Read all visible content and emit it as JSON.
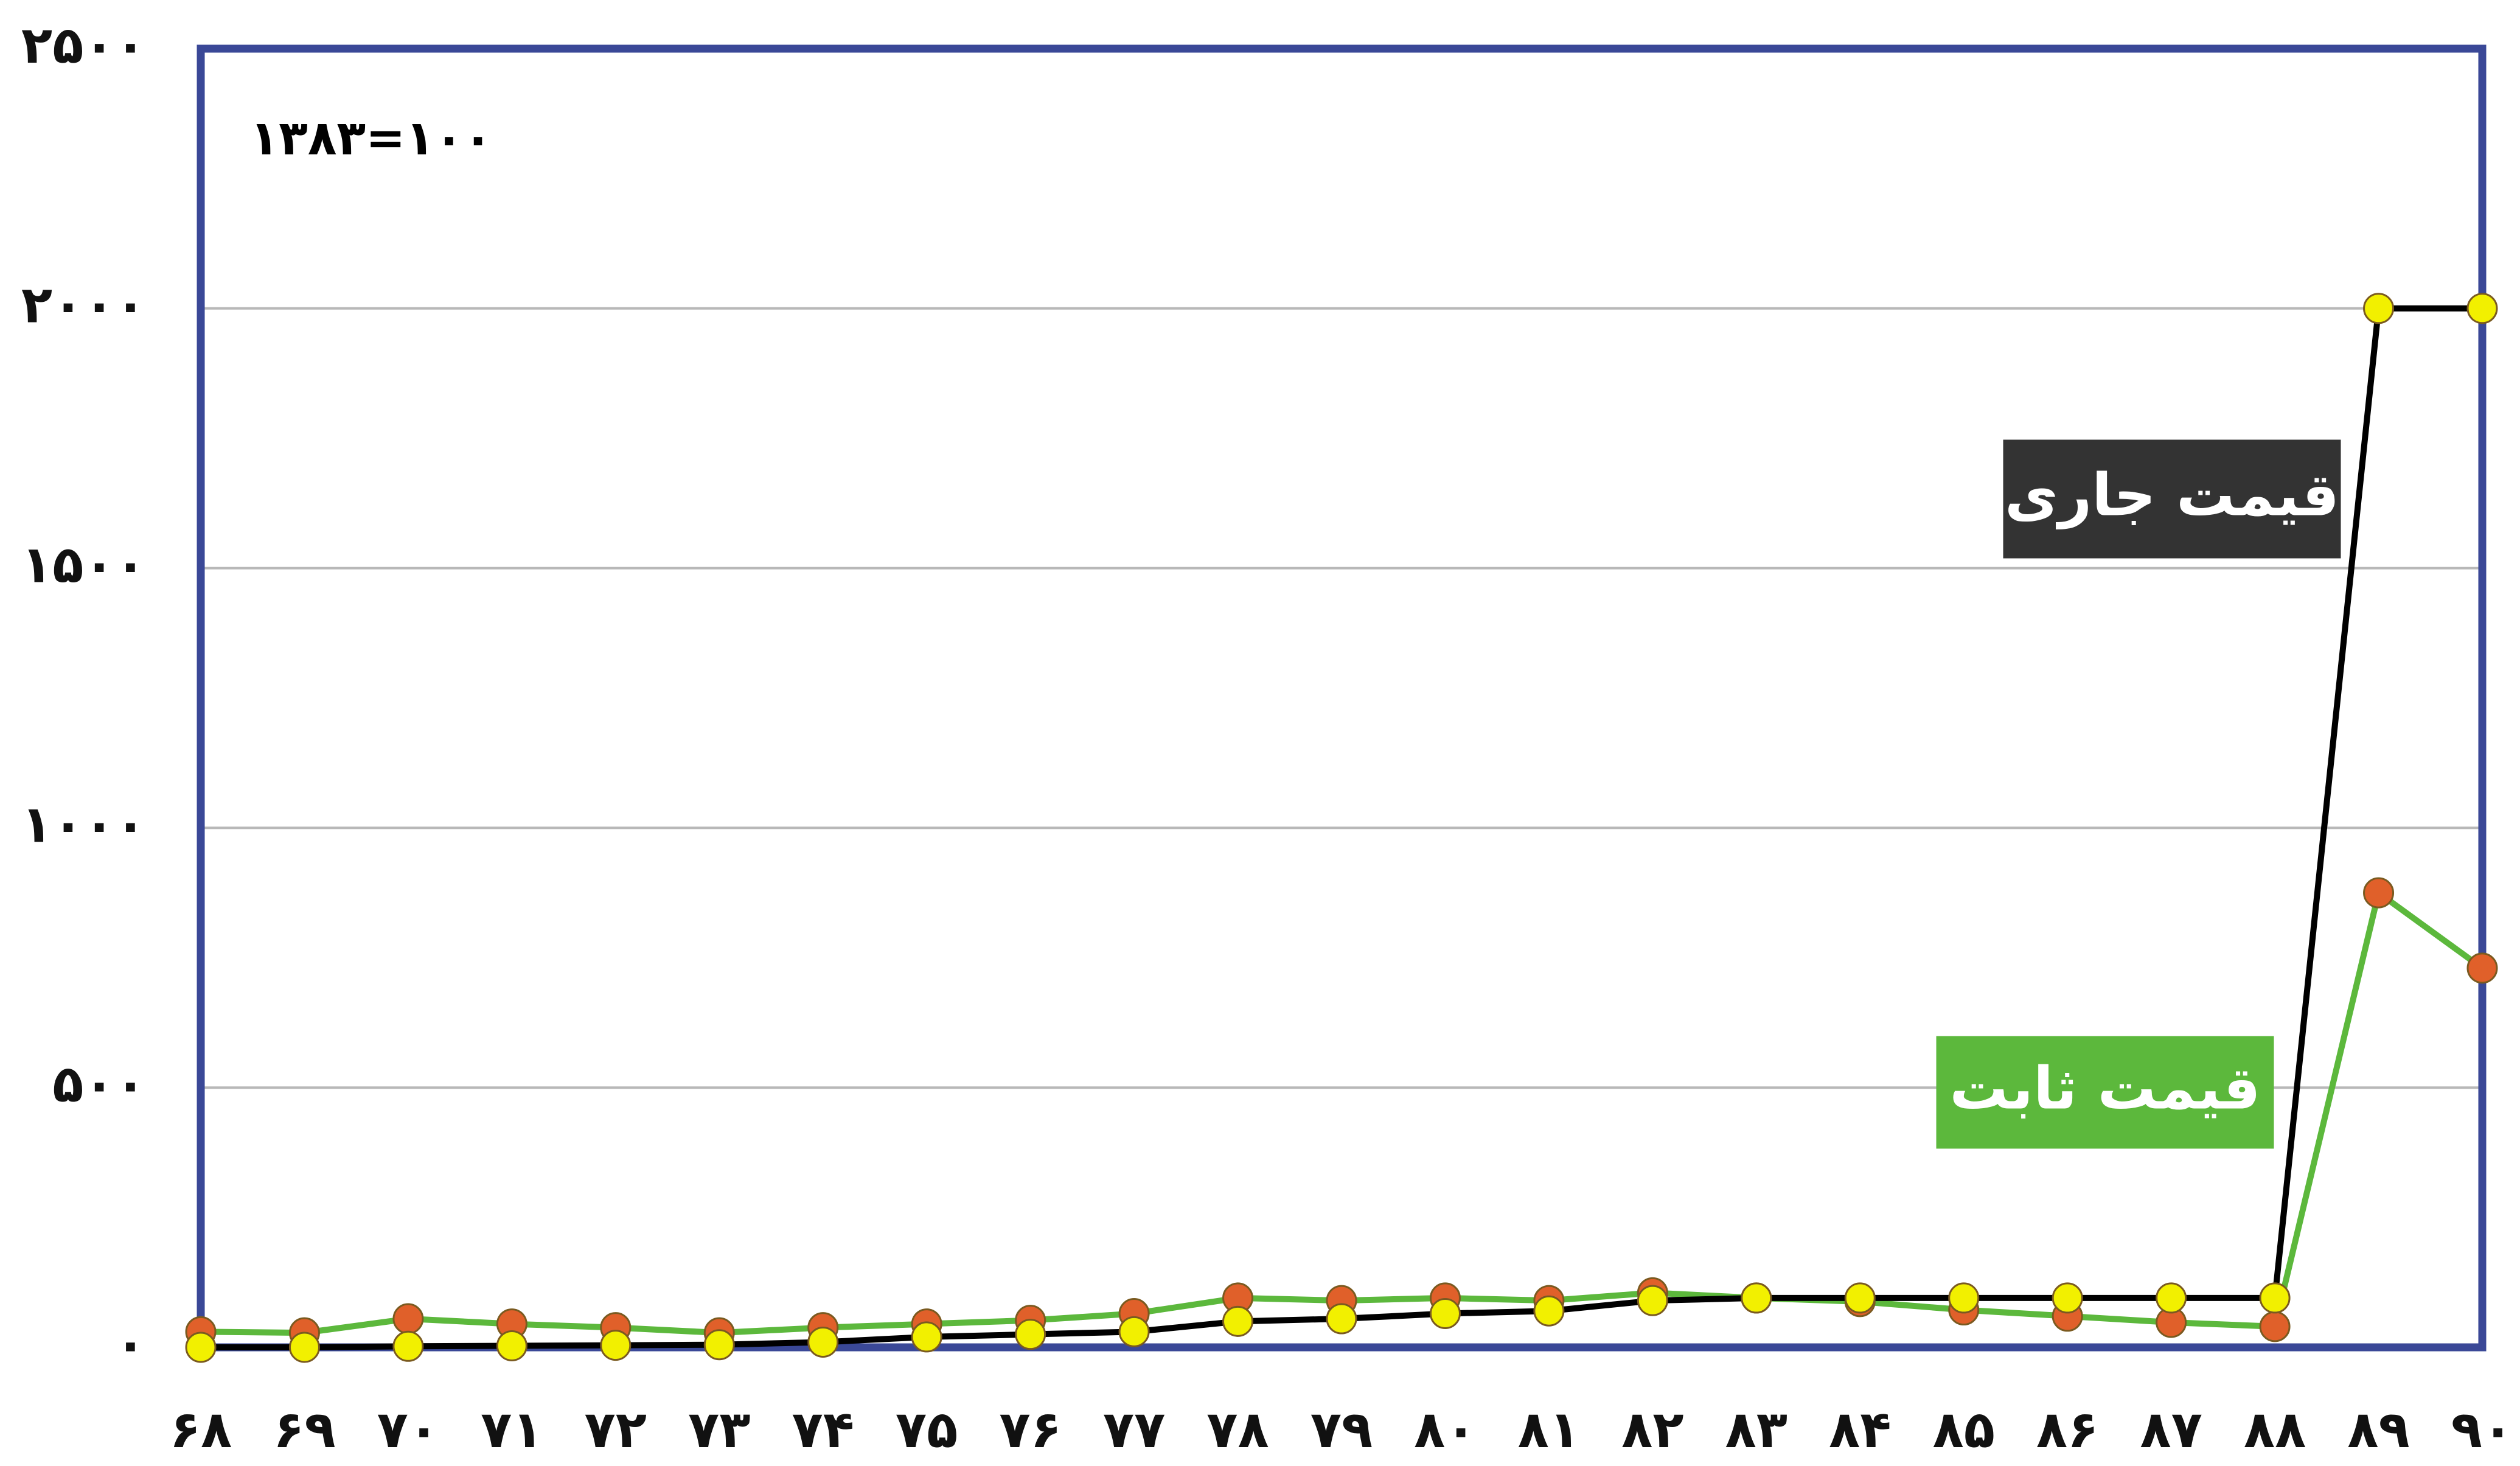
{
  "chart_data": {
    "type": "line",
    "annotation": "۱۳۸۳=۱۰۰",
    "categories": [
      "۶۸",
      "۶۹",
      "۷۰",
      "۷۱",
      "۷۲",
      "۷۳",
      "۷۴",
      "۷۵",
      "۷۶",
      "۷۷",
      "۷۸",
      "۷۹",
      "۸۰",
      "۸۱",
      "۸۲",
      "۸۳",
      "۸۴",
      "۸۵",
      "۸۶",
      "۸۷",
      "۸۸",
      "۸۹",
      "۹۰"
    ],
    "series": [
      {
        "name": "قیمت جاری",
        "color": "#000000",
        "marker_color": "#f2f000",
        "label_bg": "#333333",
        "values": [
          0,
          0,
          2,
          3,
          4,
          5,
          10,
          20,
          25,
          30,
          50,
          55,
          65,
          70,
          90,
          95,
          95,
          95,
          95,
          95,
          95,
          2000,
          2000
        ]
      },
      {
        "name": "قیمت ثابت",
        "color": "#5cb83c",
        "marker_color": "#e0602a",
        "label_bg": "#5cb83c",
        "values": [
          30,
          28,
          55,
          45,
          38,
          28,
          38,
          45,
          52,
          65,
          95,
          90,
          95,
          90,
          105,
          95,
          88,
          72,
          60,
          48,
          40,
          875,
          730
        ]
      }
    ],
    "ylim": [
      0,
      2500
    ],
    "yticks": [
      {
        "value": 0,
        "label": "۰"
      },
      {
        "value": 500,
        "label": "۵۰۰"
      },
      {
        "value": 1000,
        "label": "۱۰۰۰"
      },
      {
        "value": 1500,
        "label": "۱۵۰۰"
      },
      {
        "value": 2000,
        "label": "۲۰۰۰"
      },
      {
        "value": 2500,
        "label": "۲۵۰۰"
      }
    ],
    "grid": true
  }
}
